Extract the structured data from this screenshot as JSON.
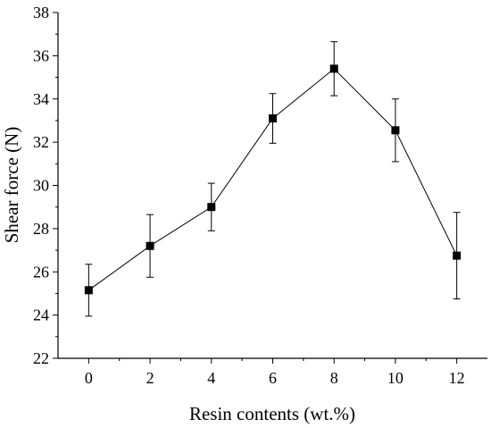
{
  "chart_data": {
    "type": "line",
    "title": "",
    "xlabel": "Resin contents (wt.%)",
    "ylabel": "Shear force (N)",
    "xlim": [
      -1,
      13
    ],
    "ylim": [
      22,
      38
    ],
    "xticks": [
      0,
      2,
      4,
      6,
      8,
      10,
      12
    ],
    "yticks": [
      22,
      24,
      26,
      28,
      30,
      32,
      34,
      36,
      38
    ],
    "grid": false,
    "legend": "none",
    "series": [
      {
        "x": [
          0,
          2,
          4,
          6,
          8,
          10,
          12
        ],
        "y": [
          25.15,
          27.2,
          29.0,
          33.1,
          35.4,
          32.55,
          26.75
        ],
        "error": [
          1.2,
          1.45,
          1.1,
          1.15,
          1.25,
          1.45,
          2.0
        ],
        "marker": "square",
        "color": "#000000"
      }
    ]
  }
}
